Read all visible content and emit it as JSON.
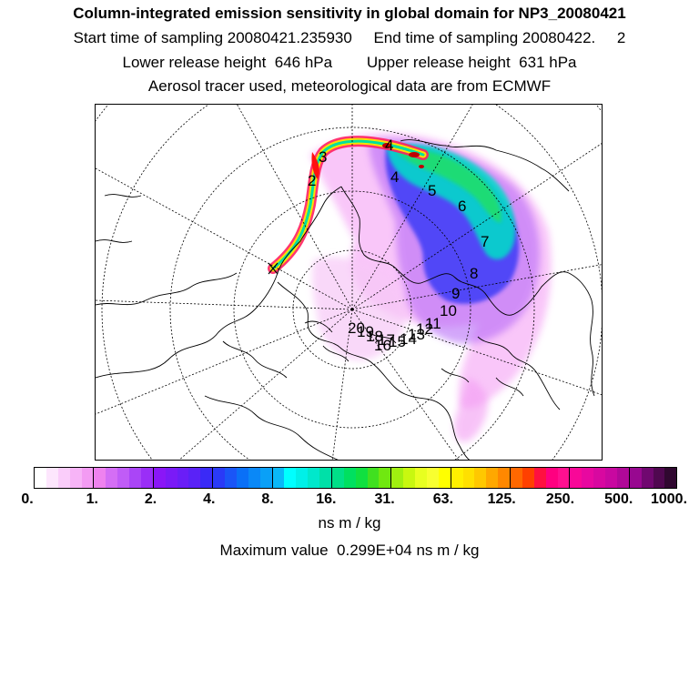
{
  "header": {
    "title": "Column-integrated emission sensitivity in global domain for NP3_20080421",
    "sampling": "Start time of sampling 20080421.235930     End time of sampling 20080422.     2",
    "release": "Lower release height  646 hPa        Upper release height  631 hPa",
    "tracer": "Aerosol tracer used, meteorological data are from ECMWF"
  },
  "map": {
    "projection": "north-polar-stereographic",
    "time_markers": [
      "2",
      "3",
      "4",
      "4",
      "5",
      "6",
      "7",
      "8",
      "9",
      "10",
      "11",
      "12",
      "13",
      "14",
      "15",
      "16",
      "17",
      "18",
      "19",
      "20"
    ]
  },
  "colorbar": {
    "colors": [
      "#ffffff",
      "#fde6fd",
      "#facdfa",
      "#f7b4f7",
      "#f39bf3",
      "#ef82ef",
      "#d46ef5",
      "#c05cf7",
      "#aa45f7",
      "#9a2ef7",
      "#8a16f7",
      "#7a1af7",
      "#6a1ef7",
      "#5a22f7",
      "#3a2af7",
      "#2a3af7",
      "#1a55f7",
      "#0a70f7",
      "#0a88f7",
      "#0aa0f7",
      "#0ab8f7",
      "#00ffff",
      "#00f0e8",
      "#00e8cc",
      "#00e0a8",
      "#00e088",
      "#00e060",
      "#10e040",
      "#40e020",
      "#70e810",
      "#a0f010",
      "#c8f810",
      "#e8ff20",
      "#f8ff30",
      "#ffff00",
      "#fff000",
      "#ffe000",
      "#ffc800",
      "#ffa800",
      "#ff8800",
      "#ff6800",
      "#ff4000",
      "#ff1040",
      "#ff0080",
      "#ff1090",
      "#f80898",
      "#e808a0",
      "#d808a0",
      "#c808a0",
      "#b00898",
      "#980890",
      "#700870",
      "#500850",
      "#300830"
    ],
    "labels": [
      "0.",
      "1.",
      "2.",
      "4.",
      "8.",
      "16.",
      "31.",
      "63.",
      "125.",
      "250.",
      "500.",
      "1000."
    ]
  },
  "units": "ns m / kg",
  "max_value": "Maximum value  0.299E+04 ns m / kg"
}
